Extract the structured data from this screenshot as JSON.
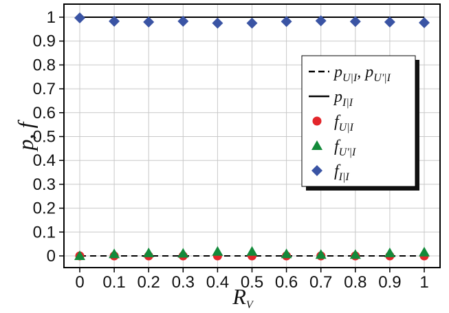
{
  "chart_data": {
    "type": "scatter",
    "xlabel_main": "R",
    "xlabel_sub": "V",
    "ylabel": "p, f",
    "xlim": [
      0,
      1
    ],
    "ylim": [
      0,
      1
    ],
    "grid": true,
    "legend_position": "top-right",
    "x_ticks": [
      "0",
      "0.1",
      "0.2",
      "0.3",
      "0.4",
      "0.5",
      "0.6",
      "0.7",
      "0.8",
      "0.9",
      "1"
    ],
    "y_ticks": [
      "0",
      "0.1",
      "0.2",
      "0.3",
      "0.4",
      "0.5",
      "0.6",
      "0.7",
      "0.8",
      "0.9",
      "1"
    ],
    "x": [
      0,
      0.1,
      0.2,
      0.3,
      0.4,
      0.5,
      0.6,
      0.7,
      0.8,
      0.9,
      1.0
    ],
    "lines": [
      {
        "key": "pU",
        "style": "dashed",
        "color": "#000000",
        "values": [
          0,
          0,
          0,
          0,
          0,
          0,
          0,
          0,
          0,
          0,
          0
        ],
        "legend": {
          "main": "p",
          "sub": "U|I",
          "sep": ", ",
          "main2": "p",
          "sub2": "U'|I"
        }
      },
      {
        "key": "pI",
        "style": "solid",
        "color": "#000000",
        "values": [
          1,
          1,
          1,
          1,
          1,
          1,
          1,
          1,
          1,
          1,
          1
        ],
        "legend": {
          "main": "p",
          "sub": "I|I"
        }
      }
    ],
    "series": [
      {
        "key": "fU",
        "marker": "circle",
        "color": "#e3262b",
        "values": [
          0.0,
          0.0,
          0.0,
          0.0,
          0.0,
          0.0,
          0.0,
          0.0,
          0.0,
          0.0,
          0.0
        ],
        "legend": {
          "main": "f",
          "sub": "U|I"
        }
      },
      {
        "key": "fUp",
        "marker": "triangle",
        "color": "#138a3a",
        "values": [
          0.0,
          0.008,
          0.012,
          0.01,
          0.018,
          0.018,
          0.008,
          0.005,
          0.005,
          0.012,
          0.015
        ],
        "legend": {
          "main": "f",
          "sub": "U'|I"
        }
      },
      {
        "key": "fI",
        "marker": "diamond",
        "color": "#3a54a4",
        "values": [
          0.997,
          0.983,
          0.98,
          0.983,
          0.975,
          0.975,
          0.982,
          0.985,
          0.982,
          0.98,
          0.977
        ],
        "legend": {
          "main": "f",
          "sub": "I|I"
        }
      }
    ]
  }
}
